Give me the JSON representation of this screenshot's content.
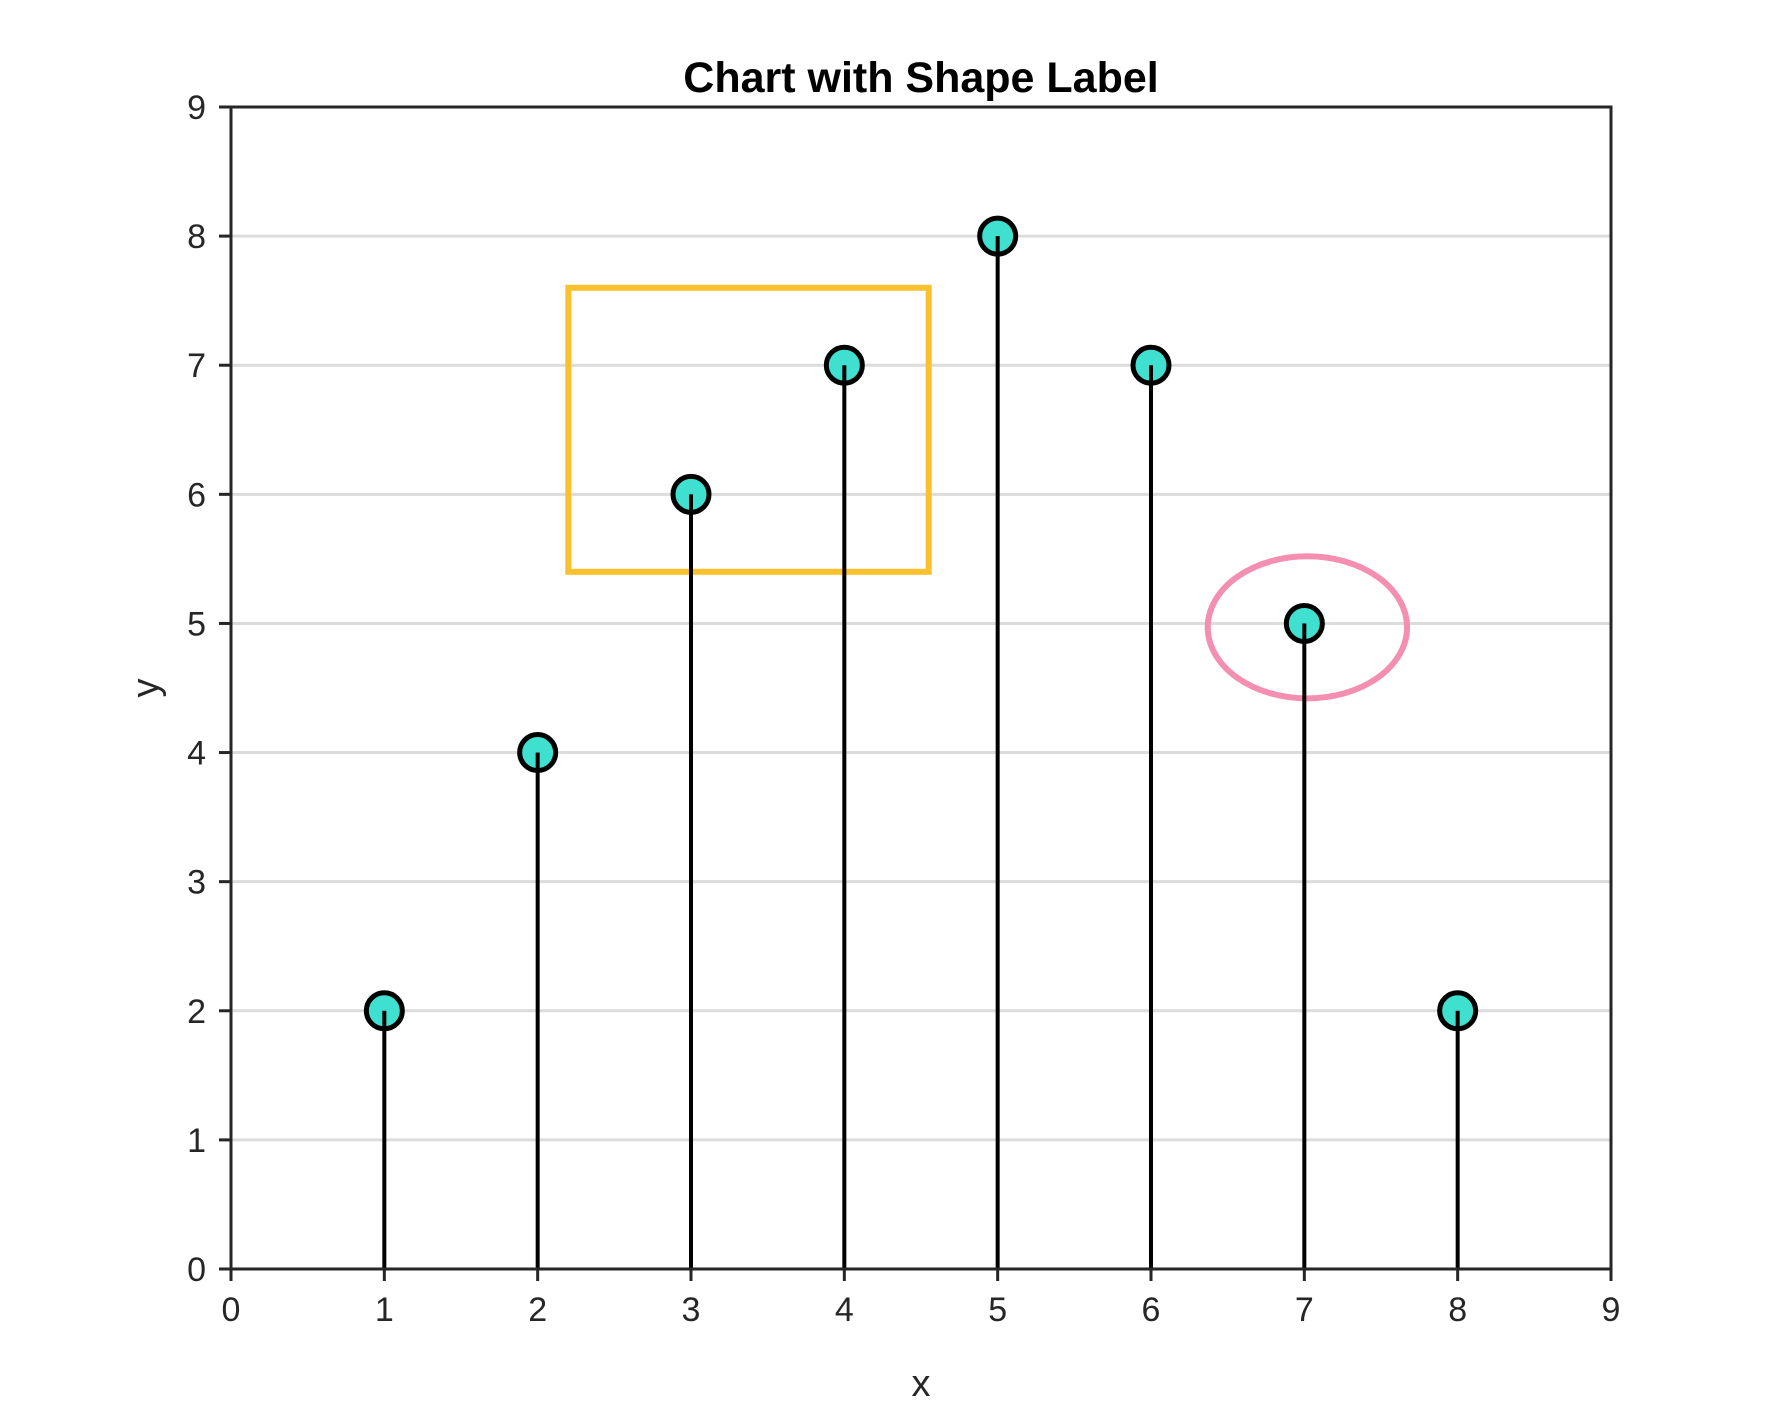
{
  "chart_data": {
    "type": "stem",
    "title": "Chart with Shape Label",
    "xlabel": "x",
    "ylabel": "y",
    "xlim": [
      0,
      9
    ],
    "ylim": [
      0,
      9
    ],
    "xticks": [
      "0",
      "1",
      "2",
      "3",
      "4",
      "5",
      "6",
      "7",
      "8",
      "9"
    ],
    "yticks": [
      "0",
      "1",
      "2",
      "3",
      "4",
      "5",
      "6",
      "7",
      "8",
      "9"
    ],
    "grid": "horizontal",
    "x": [
      1,
      2,
      3,
      4,
      5,
      6,
      7,
      8
    ],
    "y": [
      2,
      4,
      6,
      7,
      8,
      7,
      5,
      2
    ],
    "marker_color": "#40E0D0",
    "stem_color": "#000000",
    "annotations": [
      {
        "type": "rectangle",
        "color": "#FBC02D",
        "x_range": [
          2.2,
          4.55
        ],
        "y_range": [
          5.4,
          7.6
        ]
      },
      {
        "type": "ellipse",
        "color": "#F48FB1",
        "center": [
          7.02,
          4.97
        ],
        "radius_x": 0.65,
        "radius_y": 0.55
      }
    ]
  }
}
